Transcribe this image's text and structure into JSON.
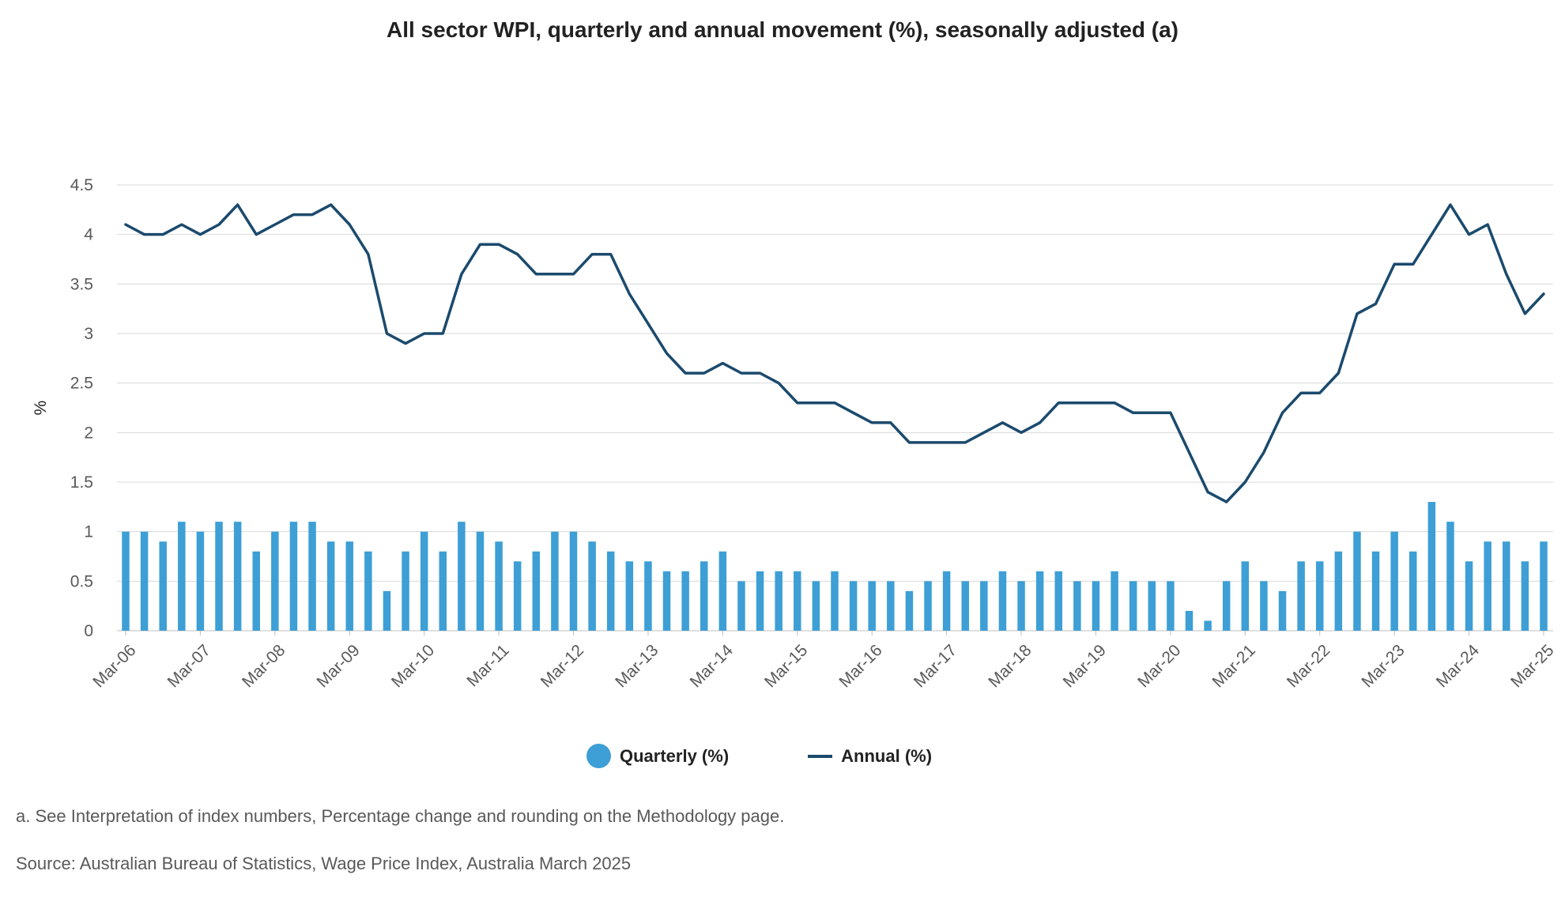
{
  "chart_data": {
    "type": "bar",
    "title": "All sector WPI, quarterly and annual movement (%), seasonally adjusted (a)",
    "xlabel": "",
    "ylabel": "%",
    "ylim": [
      0,
      4.5
    ],
    "yticks": [
      "0",
      "0.5",
      "1",
      "1.5",
      "2",
      "2.5",
      "3",
      "3.5",
      "4",
      "4.5"
    ],
    "grid": true,
    "legend_position": "bottom",
    "x_tick_labels": [
      "Mar-06",
      "Mar-07",
      "Mar-08",
      "Mar-09",
      "Mar-10",
      "Mar-11",
      "Mar-12",
      "Mar-13",
      "Mar-14",
      "Mar-15",
      "Mar-16",
      "Mar-17",
      "Mar-18",
      "Mar-19",
      "Mar-20",
      "Mar-21",
      "Mar-22",
      "Mar-23",
      "Mar-24",
      "Mar-25"
    ],
    "categories": [
      "Mar-06",
      "Jun-06",
      "Sep-06",
      "Dec-06",
      "Mar-07",
      "Jun-07",
      "Sep-07",
      "Dec-07",
      "Mar-08",
      "Jun-08",
      "Sep-08",
      "Dec-08",
      "Mar-09",
      "Jun-09",
      "Sep-09",
      "Dec-09",
      "Mar-10",
      "Jun-10",
      "Sep-10",
      "Dec-10",
      "Mar-11",
      "Jun-11",
      "Sep-11",
      "Dec-11",
      "Mar-12",
      "Jun-12",
      "Sep-12",
      "Dec-12",
      "Mar-13",
      "Jun-13",
      "Sep-13",
      "Dec-13",
      "Mar-14",
      "Jun-14",
      "Sep-14",
      "Dec-14",
      "Mar-15",
      "Jun-15",
      "Sep-15",
      "Dec-15",
      "Mar-16",
      "Jun-16",
      "Sep-16",
      "Dec-16",
      "Mar-17",
      "Jun-17",
      "Sep-17",
      "Dec-17",
      "Mar-18",
      "Jun-18",
      "Sep-18",
      "Dec-18",
      "Mar-19",
      "Jun-19",
      "Sep-19",
      "Dec-19",
      "Mar-20",
      "Jun-20",
      "Sep-20",
      "Dec-20",
      "Mar-21",
      "Jun-21",
      "Sep-21",
      "Dec-21",
      "Mar-22",
      "Jun-22",
      "Sep-22",
      "Dec-22",
      "Mar-23",
      "Jun-23",
      "Sep-23",
      "Dec-23",
      "Mar-24",
      "Jun-24",
      "Sep-24",
      "Dec-24",
      "Mar-25"
    ],
    "series": [
      {
        "name": "Quarterly (%)",
        "type": "bar",
        "color": "#3d9fd5",
        "values": [
          1.0,
          1.0,
          0.9,
          1.1,
          1.0,
          1.1,
          1.1,
          0.8,
          1.0,
          1.1,
          1.1,
          0.9,
          0.9,
          0.8,
          0.4,
          0.8,
          1.0,
          0.8,
          1.1,
          1.0,
          0.9,
          0.7,
          0.8,
          1.0,
          1.0,
          0.9,
          0.8,
          0.7,
          0.7,
          0.6,
          0.6,
          0.7,
          0.8,
          0.5,
          0.6,
          0.6,
          0.6,
          0.5,
          0.6,
          0.5,
          0.5,
          0.5,
          0.4,
          0.5,
          0.6,
          0.5,
          0.5,
          0.6,
          0.5,
          0.6,
          0.6,
          0.5,
          0.5,
          0.6,
          0.5,
          0.5,
          0.5,
          0.2,
          0.1,
          0.5,
          0.7,
          0.5,
          0.4,
          0.7,
          0.7,
          0.8,
          1.0,
          0.8,
          1.0,
          0.8,
          1.3,
          1.1,
          0.7,
          0.9,
          0.9,
          0.7,
          0.9
        ]
      },
      {
        "name": "Annual (%)",
        "type": "line",
        "color": "#1b4a6d",
        "values": [
          4.1,
          4.0,
          4.0,
          4.1,
          4.0,
          4.1,
          4.3,
          4.0,
          4.1,
          4.2,
          4.2,
          4.3,
          4.1,
          3.8,
          3.0,
          2.9,
          3.0,
          3.0,
          3.6,
          3.9,
          3.9,
          3.8,
          3.6,
          3.6,
          3.6,
          3.8,
          3.8,
          3.4,
          3.1,
          2.8,
          2.6,
          2.6,
          2.7,
          2.6,
          2.6,
          2.5,
          2.3,
          2.3,
          2.3,
          2.2,
          2.1,
          2.1,
          1.9,
          1.9,
          1.9,
          1.9,
          2.0,
          2.1,
          2.0,
          2.1,
          2.3,
          2.3,
          2.3,
          2.3,
          2.2,
          2.2,
          2.2,
          1.8,
          1.4,
          1.3,
          1.5,
          1.8,
          2.2,
          2.4,
          2.4,
          2.6,
          3.2,
          3.3,
          3.7,
          3.7,
          4.0,
          4.3,
          4.0,
          4.1,
          3.6,
          3.2,
          3.4
        ]
      }
    ]
  },
  "footnote": "a. See Interpretation of index numbers, Percentage change and rounding on the Methodology page.",
  "source": "Source: Australian Bureau of Statistics, Wage Price Index, Australia March 2025"
}
